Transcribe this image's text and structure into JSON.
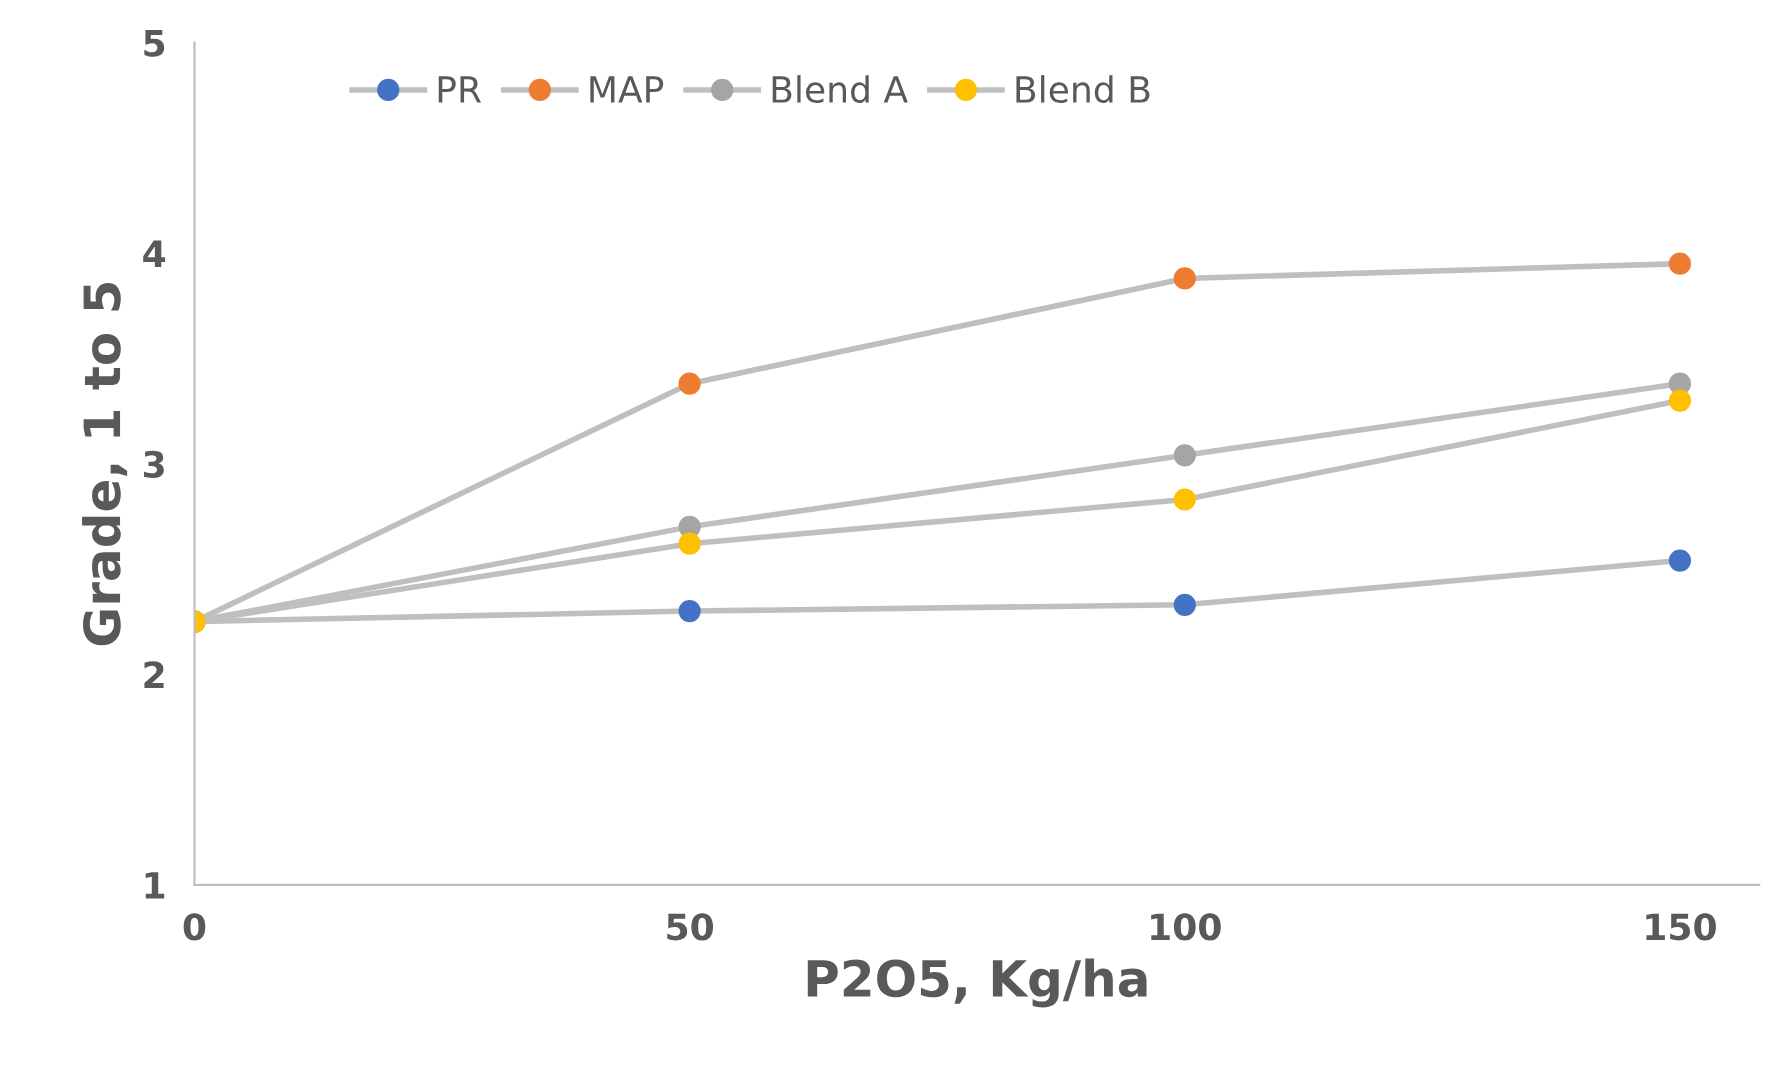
{
  "chart_data": {
    "type": "line",
    "xlabel": "P2O5, Kg/ha",
    "ylabel": "Grade, 1 to 5",
    "x": [
      0,
      50,
      100,
      150
    ],
    "series": [
      {
        "name": "PR",
        "color": "#4472c4",
        "values": [
          2.25,
          2.3,
          2.33,
          2.54
        ]
      },
      {
        "name": "MAP",
        "color": "#ed7d31",
        "values": [
          2.25,
          3.38,
          3.88,
          3.95
        ]
      },
      {
        "name": "Blend A",
        "color": "#a5a5a5",
        "values": [
          2.25,
          2.7,
          3.04,
          3.38
        ]
      },
      {
        "name": "Blend B",
        "color": "#ffc000",
        "values": [
          2.25,
          2.62,
          2.83,
          3.3
        ]
      }
    ],
    "xlim": [
      0,
      158
    ],
    "xticks": [
      0,
      50,
      100,
      150
    ],
    "ylim": [
      1,
      5
    ],
    "yticks": [
      1,
      2,
      3,
      4,
      5
    ],
    "grid": false,
    "legend": "top left",
    "marker": "circle",
    "line_style": "solid"
  }
}
